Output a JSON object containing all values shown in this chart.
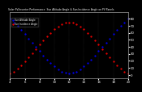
{
  "title": "Solar PV/Inverter Performance  Sun Altitude Angle & Sun Incidence Angle on PV Panels",
  "x_start": 4,
  "x_end": 20,
  "ylim": [
    -5,
    90
  ],
  "yticks_right": [
    0,
    10,
    20,
    30,
    40,
    50,
    60,
    70,
    80
  ],
  "xticks": [
    4,
    6,
    8,
    10,
    12,
    14,
    16,
    18,
    20
  ],
  "background_color": "#000000",
  "grid_color": "#555555",
  "blue_color": "#0000ff",
  "red_color": "#ff0000",
  "blue_label": "Sun Altitude Angle",
  "red_label": "Sun Incidence Angle",
  "blue_x": [
    4,
    4.5,
    5,
    5.5,
    6,
    6.5,
    7,
    7.5,
    8,
    8.5,
    9,
    9.5,
    10,
    10.5,
    11,
    11.5,
    12,
    12.5,
    13,
    13.5,
    14,
    14.5,
    15,
    15.5,
    16,
    16.5,
    17,
    17.5,
    18,
    18.5,
    19,
    19.5,
    20
  ],
  "blue_y": [
    80,
    75,
    70,
    64,
    58,
    52,
    46,
    40,
    34,
    28,
    22,
    17,
    12,
    8,
    5,
    3,
    2,
    3,
    5,
    8,
    12,
    17,
    22,
    28,
    34,
    40,
    46,
    52,
    58,
    64,
    70,
    75,
    80
  ],
  "red_x": [
    4,
    4.5,
    5,
    5.5,
    6,
    6.5,
    7,
    7.5,
    8,
    8.5,
    9,
    9.5,
    10,
    10.5,
    11,
    11.5,
    12,
    12.5,
    13,
    13.5,
    14,
    14.5,
    15,
    15.5,
    16,
    16.5,
    17,
    17.5,
    18,
    18.5,
    19,
    19.5,
    20
  ],
  "red_y": [
    2,
    5,
    9,
    14,
    19,
    25,
    31,
    37,
    43,
    49,
    55,
    60,
    65,
    69,
    72,
    74,
    75,
    74,
    72,
    69,
    65,
    60,
    55,
    49,
    43,
    37,
    31,
    25,
    19,
    14,
    9,
    5,
    2
  ]
}
